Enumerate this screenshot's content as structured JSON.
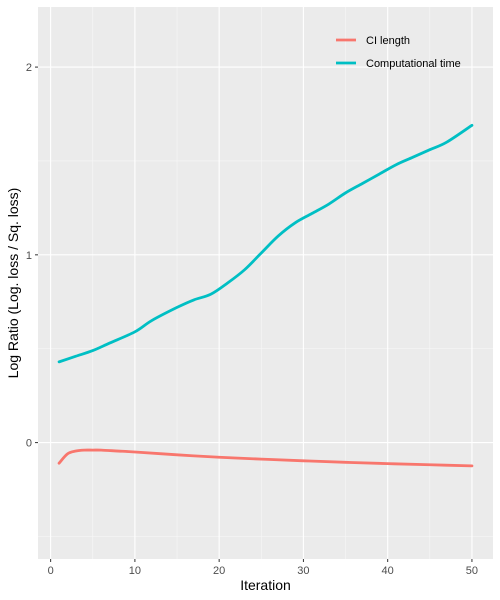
{
  "chart_data": {
    "type": "line",
    "title": "",
    "xlabel": "Iteration",
    "ylabel": "Log Ratio (Log. loss / Sq. loss)",
    "xlim": [
      -1.5,
      52.5
    ],
    "ylim": [
      -0.62,
      2.32
    ],
    "x_ticks": [
      0,
      10,
      20,
      30,
      40,
      50
    ],
    "x_tick_labels": [
      "0",
      "10",
      "20",
      "30",
      "40",
      "50"
    ],
    "y_ticks": [
      0,
      1,
      2
    ],
    "y_tick_labels": [
      "0",
      "1",
      "2"
    ],
    "grid": true,
    "legend_position": "top-right",
    "series": [
      {
        "name": "CI length",
        "color": "#F8766D",
        "x": [
          1,
          2,
          3,
          4,
          5,
          6,
          8,
          10,
          15,
          20,
          25,
          30,
          35,
          40,
          45,
          50
        ],
        "values": [
          -0.11,
          -0.06,
          -0.045,
          -0.04,
          -0.04,
          -0.04,
          -0.045,
          -0.05,
          -0.065,
          -0.078,
          -0.088,
          -0.097,
          -0.105,
          -0.112,
          -0.118,
          -0.124
        ]
      },
      {
        "name": "Computational time",
        "color": "#00BFC4",
        "x": [
          1,
          3,
          5,
          7,
          10,
          12,
          15,
          17,
          19,
          21,
          23,
          25,
          27,
          29,
          31,
          33,
          35,
          37,
          39,
          41,
          43,
          45,
          47,
          50
        ],
        "values": [
          0.43,
          0.46,
          0.49,
          0.53,
          0.59,
          0.65,
          0.72,
          0.76,
          0.79,
          0.85,
          0.92,
          1.01,
          1.1,
          1.17,
          1.22,
          1.27,
          1.33,
          1.38,
          1.43,
          1.48,
          1.52,
          1.56,
          1.6,
          1.69
        ]
      }
    ]
  }
}
